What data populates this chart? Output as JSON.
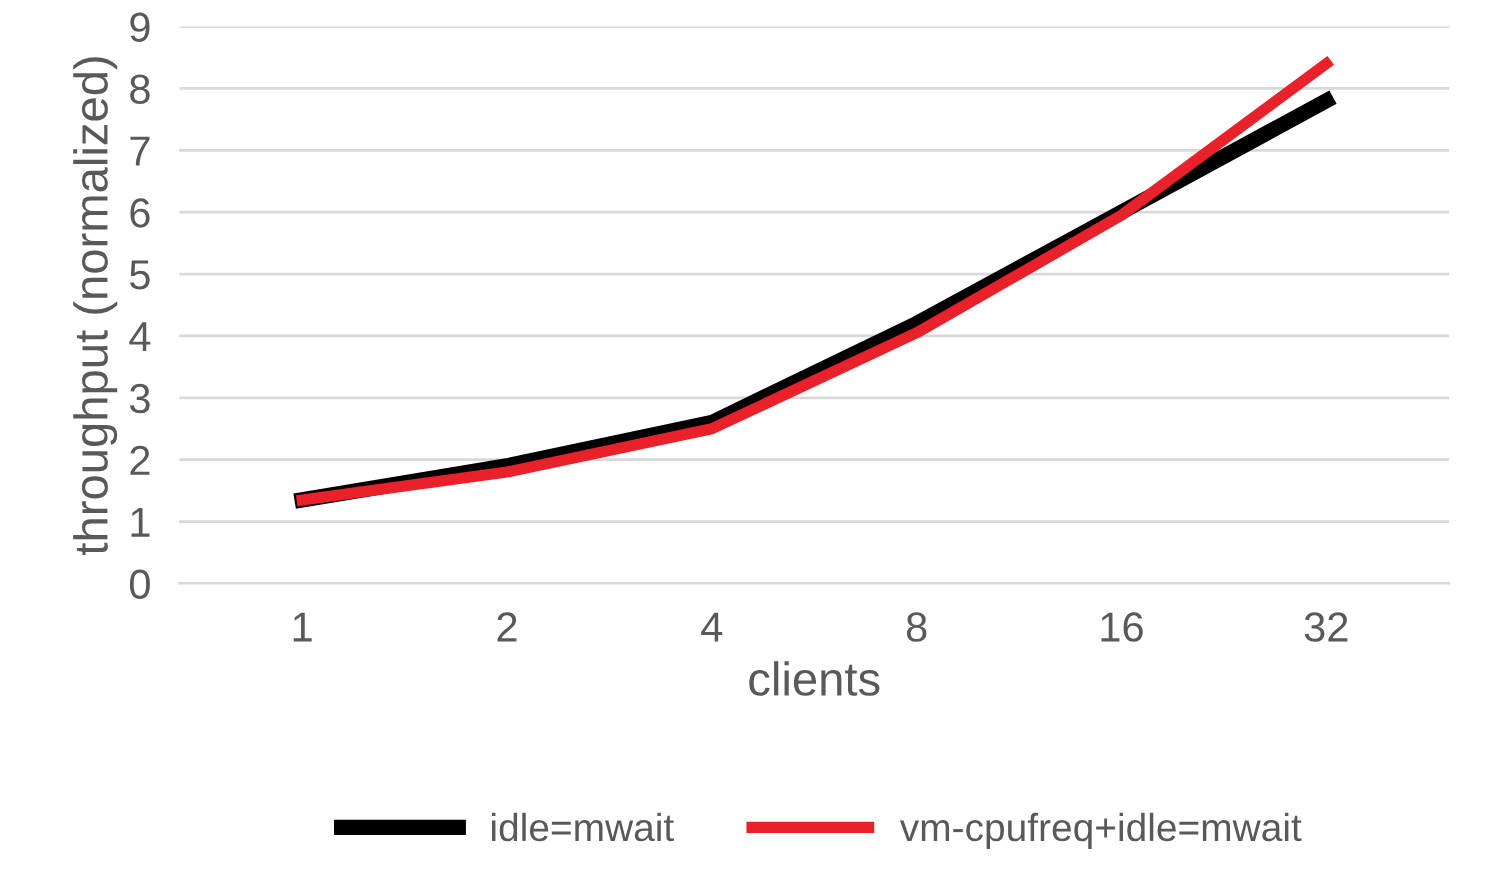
{
  "chart_data": {
    "type": "line",
    "xlabel": "clients",
    "ylabel": "throughput (normalized)",
    "categories": [
      "1",
      "2",
      "4",
      "8",
      "16",
      "32"
    ],
    "series": [
      {
        "name": "idle=mwait",
        "color": "#000000",
        "values": [
          1.35,
          1.9,
          2.6,
          4.2,
          6.0,
          7.8
        ]
      },
      {
        "name": "vm-cpufreq+idle=mwait",
        "color": "#e8212b",
        "values": [
          1.35,
          1.8,
          2.5,
          4.05,
          5.95,
          8.4
        ]
      }
    ],
    "ylim": [
      0,
      9
    ],
    "yticks": [
      0,
      1,
      2,
      3,
      4,
      5,
      6,
      7,
      8,
      9
    ],
    "grid": "y",
    "legend": "bottom",
    "marker": "none",
    "line_style": "solid"
  }
}
